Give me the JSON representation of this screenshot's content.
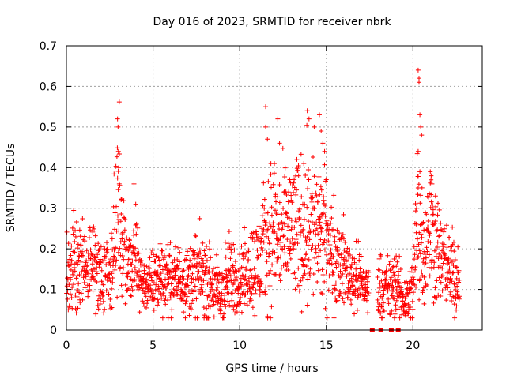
{
  "chart_data": {
    "type": "scatter",
    "title": "Day 016 of 2023, SRMTID for receiver nbrk",
    "xlabel": "GPS time / hours",
    "ylabel": "SRMTID / TECUs",
    "xlim": [
      0,
      24
    ],
    "ylim": [
      0,
      0.7
    ],
    "x_ticks": [
      0,
      5,
      10,
      15,
      20
    ],
    "x_tick_labels": [
      "0",
      "5",
      "10",
      "15",
      "20"
    ],
    "y_ticks": [
      0,
      0.1,
      0.2,
      0.3,
      0.4,
      0.5,
      0.6,
      0.7
    ],
    "y_tick_labels": [
      "0",
      "0.1",
      "0.2",
      "0.3",
      "0.4",
      "0.5",
      "0.6",
      "0.7"
    ],
    "grid": true,
    "marker": "plus",
    "color": "#ff0000",
    "zero_markers": [
      17.65,
      18.15,
      18.75,
      19.15
    ],
    "envelope": [
      [
        0.0,
        0.13,
        0.05
      ],
      [
        0.5,
        0.17,
        0.06
      ],
      [
        1.0,
        0.14,
        0.05
      ],
      [
        1.5,
        0.16,
        0.05
      ],
      [
        2.0,
        0.15,
        0.05
      ],
      [
        2.5,
        0.13,
        0.04
      ],
      [
        2.8,
        0.22,
        0.09
      ],
      [
        3.0,
        0.27,
        0.14
      ],
      [
        3.3,
        0.2,
        0.05
      ],
      [
        3.6,
        0.14,
        0.04
      ],
      [
        4.0,
        0.17,
        0.06
      ],
      [
        4.5,
        0.11,
        0.03
      ],
      [
        5.0,
        0.12,
        0.04
      ],
      [
        5.5,
        0.14,
        0.05
      ],
      [
        6.0,
        0.12,
        0.04
      ],
      [
        6.5,
        0.13,
        0.04
      ],
      [
        7.0,
        0.12,
        0.04
      ],
      [
        7.5,
        0.14,
        0.05
      ],
      [
        8.0,
        0.13,
        0.05
      ],
      [
        8.5,
        0.1,
        0.04
      ],
      [
        9.0,
        0.09,
        0.05
      ],
      [
        9.5,
        0.14,
        0.05
      ],
      [
        10.0,
        0.12,
        0.04
      ],
      [
        10.5,
        0.15,
        0.05
      ],
      [
        11.0,
        0.16,
        0.06
      ],
      [
        11.5,
        0.21,
        0.08
      ],
      [
        12.0,
        0.24,
        0.09
      ],
      [
        12.5,
        0.22,
        0.08
      ],
      [
        13.0,
        0.25,
        0.09
      ],
      [
        13.5,
        0.24,
        0.09
      ],
      [
        14.0,
        0.27,
        0.1
      ],
      [
        14.5,
        0.24,
        0.09
      ],
      [
        15.0,
        0.21,
        0.08
      ],
      [
        15.5,
        0.18,
        0.06
      ],
      [
        16.0,
        0.16,
        0.05
      ],
      [
        16.5,
        0.13,
        0.04
      ],
      [
        17.0,
        0.12,
        0.04
      ],
      [
        17.4,
        0.1,
        0.03
      ],
      [
        18.0,
        0.11,
        0.04
      ],
      [
        18.5,
        0.1,
        0.04
      ],
      [
        19.0,
        0.11,
        0.04
      ],
      [
        19.5,
        0.07,
        0.03
      ],
      [
        20.0,
        0.1,
        0.04
      ],
      [
        20.3,
        0.3,
        0.13
      ],
      [
        20.6,
        0.2,
        0.06
      ],
      [
        21.0,
        0.25,
        0.09
      ],
      [
        21.5,
        0.19,
        0.06
      ],
      [
        22.0,
        0.15,
        0.05
      ],
      [
        22.5,
        0.13,
        0.05
      ],
      [
        22.7,
        0.13,
        0.04
      ]
    ],
    "spikes": [
      [
        2.95,
        0.52
      ],
      [
        2.98,
        0.5
      ],
      [
        3.0,
        0.44
      ],
      [
        3.02,
        0.4
      ],
      [
        3.05,
        0.36
      ],
      [
        3.9,
        0.36
      ],
      [
        4.0,
        0.31
      ],
      [
        11.5,
        0.55
      ],
      [
        11.5,
        0.5
      ],
      [
        11.6,
        0.47
      ],
      [
        11.8,
        0.41
      ],
      [
        12.0,
        0.41
      ],
      [
        12.2,
        0.52
      ],
      [
        12.3,
        0.46
      ],
      [
        13.7,
        0.41
      ],
      [
        13.9,
        0.54
      ],
      [
        14.0,
        0.52
      ],
      [
        14.3,
        0.5
      ],
      [
        14.6,
        0.53
      ],
      [
        14.7,
        0.49
      ],
      [
        14.8,
        0.46
      ],
      [
        14.9,
        0.44
      ],
      [
        20.3,
        0.64
      ],
      [
        20.35,
        0.62
      ],
      [
        20.35,
        0.61
      ],
      [
        20.4,
        0.53
      ],
      [
        20.45,
        0.5
      ],
      [
        20.5,
        0.48
      ],
      [
        20.3,
        0.44
      ],
      [
        20.4,
        0.39
      ],
      [
        20.3,
        0.35
      ],
      [
        21.0,
        0.39
      ],
      [
        21.05,
        0.38
      ],
      [
        21.1,
        0.36
      ],
      [
        21.3,
        0.33
      ]
    ]
  }
}
